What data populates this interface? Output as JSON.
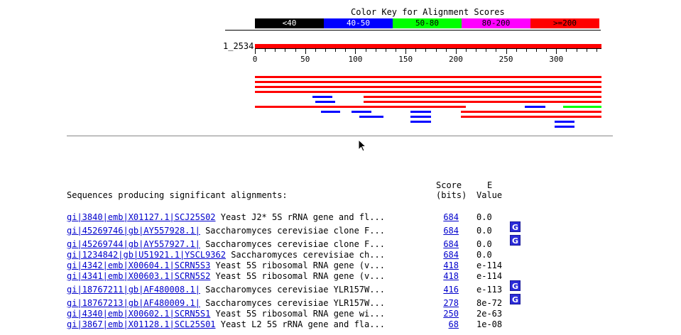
{
  "color_key": {
    "title": "Color Key for Alignment Scores",
    "segments": [
      {
        "label": "<40",
        "color": "#000000",
        "text_color": "#ffffff"
      },
      {
        "label": "40-50",
        "color": "#0000ff",
        "text_color": "#ffffff"
      },
      {
        "label": "50-80",
        "color": "#00ff00",
        "text_color": "#000000"
      },
      {
        "label": "80-200",
        "color": "#ff00ff",
        "text_color": "#000000"
      },
      {
        "label": ">=200",
        "color": "#ff0000",
        "text_color": "#000000"
      }
    ]
  },
  "query": {
    "label": "1_2534",
    "length": 345,
    "axis_ticks": [
      0,
      50,
      100,
      150,
      200,
      250,
      300
    ]
  },
  "graphic_hits": [
    {
      "start": 0,
      "end": 345,
      "color": "#ff0000",
      "row": 0
    },
    {
      "start": 0,
      "end": 345,
      "color": "#ff0000",
      "row": 1
    },
    {
      "start": 0,
      "end": 345,
      "color": "#ff0000",
      "row": 2
    },
    {
      "start": 0,
      "end": 345,
      "color": "#ff0000",
      "row": 3
    },
    {
      "start": 57,
      "end": 77,
      "color": "#0000ff",
      "row": 4
    },
    {
      "start": 108,
      "end": 345,
      "color": "#ff0000",
      "row": 4
    },
    {
      "start": 60,
      "end": 80,
      "color": "#0000ff",
      "row": 5
    },
    {
      "start": 108,
      "end": 345,
      "color": "#ff0000",
      "row": 5
    },
    {
      "start": 0,
      "end": 210,
      "color": "#ff0000",
      "row": 6
    },
    {
      "start": 269,
      "end": 289,
      "color": "#0000ff",
      "row": 6
    },
    {
      "start": 307,
      "end": 345,
      "color": "#00ff00",
      "row": 6
    },
    {
      "start": 66,
      "end": 85,
      "color": "#0000ff",
      "row": 7
    },
    {
      "start": 96,
      "end": 116,
      "color": "#0000ff",
      "row": 7
    },
    {
      "start": 155,
      "end": 175,
      "color": "#0000ff",
      "row": 7
    },
    {
      "start": 205,
      "end": 345,
      "color": "#ff0000",
      "row": 7
    },
    {
      "start": 104,
      "end": 128,
      "color": "#0000ff",
      "row": 8
    },
    {
      "start": 155,
      "end": 175,
      "color": "#0000ff",
      "row": 8
    },
    {
      "start": 205,
      "end": 345,
      "color": "#ff0000",
      "row": 8
    },
    {
      "start": 155,
      "end": 175,
      "color": "#0000ff",
      "row": 9
    },
    {
      "start": 298,
      "end": 318,
      "color": "#0000ff",
      "row": 9
    },
    {
      "start": 298,
      "end": 318,
      "color": "#0000ff",
      "row": 10
    }
  ],
  "results": {
    "score_header": "Score",
    "score_subheader": "(bits)",
    "e_header": "E",
    "e_subheader": "Value",
    "title": "Sequences producing significant alignments:",
    "rows": [
      {
        "id": "gi|3840|emb|X01127.1|SCJ25S02",
        "desc": " Yeast J2* 5S rRNA gene and fl...",
        "score": "684",
        "evalue": "0.0",
        "g": ""
      },
      {
        "id": "gi|45269746|gb|AY557928.1|",
        "desc": " Saccharomyces cerevisiae clone F...",
        "score": "684",
        "evalue": "0.0",
        "g": "G"
      },
      {
        "id": "gi|45269744|gb|AY557927.1|",
        "desc": " Saccharomyces cerevisiae clone F...",
        "score": "684",
        "evalue": "0.0",
        "g": "G"
      },
      {
        "id": "gi|1234842|gb|U51921.1|YSCL9362",
        "desc": " Saccharomyces cerevisiae ch...",
        "score": "684",
        "evalue": "0.0",
        "g": ""
      },
      {
        "id": "gi|4342|emb|X00604.1|SCRN5S3",
        "desc": " Yeast 5S ribosomal RNA gene (v...",
        "score": "418",
        "evalue": "e-114",
        "g": ""
      },
      {
        "id": "gi|4341|emb|X00603.1|SCRN5S2",
        "desc": " Yeast 5S ribosomal RNA gene (v...",
        "score": "418",
        "evalue": "e-114",
        "g": ""
      },
      {
        "id": "gi|18767211|gb|AF480008.1|",
        "desc": " Saccharomyces cerevisiae YLR157W...",
        "score": "416",
        "evalue": "e-113",
        "g": "G"
      },
      {
        "id": "gi|18767213|gb|AF480009.1|",
        "desc": " Saccharomyces cerevisiae YLR157W...",
        "score": "278",
        "evalue": "8e-72",
        "g": "G"
      },
      {
        "id": "gi|4340|emb|X00602.1|SCRN5S1",
        "desc": " Yeast 5S ribosomal RNA gene wi...",
        "score": "250",
        "evalue": "2e-63",
        "g": ""
      },
      {
        "id": "gi|3867|emb|X01128.1|SCL25S01",
        "desc": " Yeast L2 5S rRNA gene and fla...",
        "score": "68",
        "evalue": "1e-08",
        "g": ""
      }
    ]
  }
}
